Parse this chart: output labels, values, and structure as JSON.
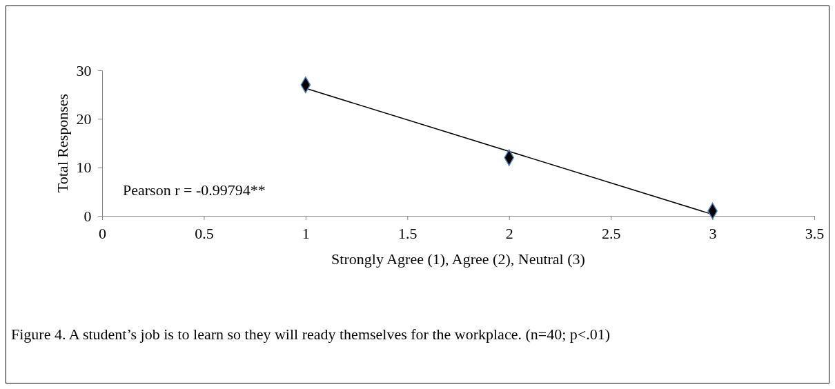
{
  "chart_data": {
    "type": "scatter",
    "xlabel": "Strongly Agree (1), Agree (2), Neutral (3)",
    "ylabel": "Total Responses",
    "xlim": [
      0,
      3.5
    ],
    "xticks": [
      0,
      0.5,
      1,
      1.5,
      2,
      2.5,
      3,
      3.5
    ],
    "ylim": [
      0,
      30
    ],
    "yticks": [
      0,
      10,
      20,
      30
    ],
    "grid": false,
    "marker": "diamond",
    "series": [
      {
        "color": "#000000",
        "x": [
          1,
          2,
          3
        ],
        "values": [
          27,
          12,
          1
        ]
      },
      {
        "type": "line",
        "color": "#000000",
        "x": [
          1,
          3
        ],
        "values": [
          26.3,
          0.3
        ],
        "line_style": "solid",
        "marker": "none"
      }
    ],
    "annotations": [
      "Pearson r = -0.99794**",
      "Figure 4.  A student’s job is to learn so they will ready themselves for the workplace.  (n=40; p<.01)"
    ]
  }
}
